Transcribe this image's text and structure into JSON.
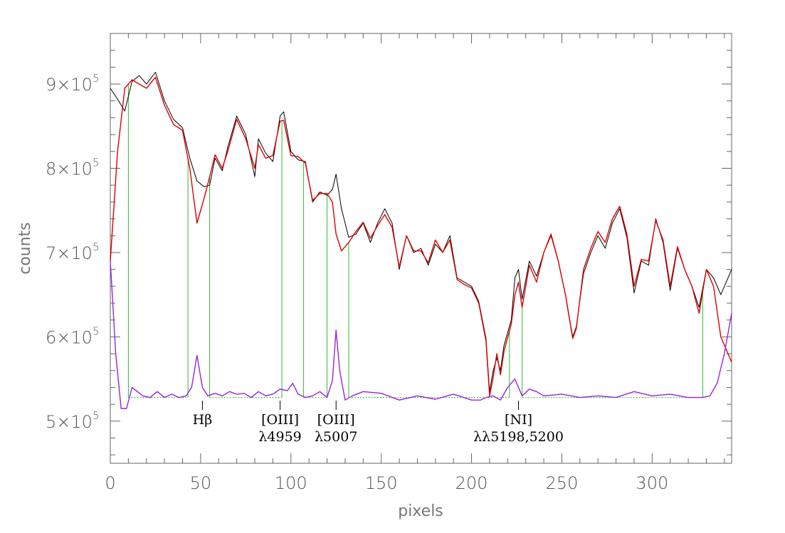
{
  "chart_data": {
    "type": "line",
    "xlabel": "pixels",
    "ylabel": "counts",
    "xlim": [
      0,
      344
    ],
    "ylim": [
      450000,
      960000
    ],
    "x_ticks": [
      0,
      50,
      100,
      150,
      200,
      250,
      300
    ],
    "x_tick_labels": [
      "0",
      "50",
      "100",
      "150",
      "200",
      "250",
      "300"
    ],
    "y_ticks": [
      500000,
      600000,
      700000,
      800000,
      900000
    ],
    "y_tick_mantissa": [
      "5",
      "6",
      "7",
      "8",
      "9"
    ],
    "y_tick_times": "×10",
    "y_tick_exponent": "5",
    "grid": false,
    "series": [
      {
        "color": "#000000",
        "x": [
          0,
          4,
          8,
          12,
          16,
          20,
          25,
          30,
          35,
          40,
          44,
          48,
          52,
          55,
          58,
          62,
          65,
          70,
          75,
          80,
          82,
          86,
          90,
          94,
          96,
          100,
          104,
          108,
          112,
          116,
          120,
          123,
          125,
          128,
          132,
          136,
          140,
          144,
          148,
          152,
          156,
          160,
          164,
          168,
          172,
          176,
          180,
          184,
          188,
          192,
          196,
          200,
          204,
          208,
          210,
          212,
          214,
          216,
          218,
          222,
          224,
          226,
          228,
          232,
          236,
          240,
          244,
          248,
          252,
          256,
          258,
          262,
          266,
          270,
          274,
          278,
          282,
          286,
          290,
          294,
          298,
          302,
          306,
          310,
          314,
          318,
          322,
          326,
          330,
          334,
          338,
          344
        ],
        "y": [
          895000,
          882000,
          868000,
          903000,
          910000,
          900000,
          914000,
          880000,
          858000,
          848000,
          812000,
          785000,
          778000,
          780000,
          812000,
          797000,
          825000,
          862000,
          840000,
          790000,
          835000,
          818000,
          808000,
          862000,
          867000,
          820000,
          810000,
          808000,
          760000,
          772000,
          768000,
          775000,
          793000,
          752000,
          718000,
          722000,
          735000,
          712000,
          735000,
          752000,
          735000,
          680000,
          720000,
          700000,
          705000,
          685000,
          710000,
          700000,
          720000,
          670000,
          665000,
          660000,
          642000,
          598000,
          535000,
          560000,
          575000,
          560000,
          590000,
          620000,
          670000,
          680000,
          645000,
          690000,
          672000,
          700000,
          720000,
          690000,
          650000,
          600000,
          612000,
          675000,
          700000,
          720000,
          705000,
          735000,
          752000,
          718000,
          652000,
          690000,
          685000,
          740000,
          712000,
          655000,
          705000,
          680000,
          660000,
          635000,
          680000,
          670000,
          650000,
          680000
        ]
      },
      {
        "color": "#dd0000",
        "x": [
          0,
          4,
          8,
          12,
          16,
          20,
          25,
          30,
          35,
          40,
          44,
          48,
          52,
          55,
          58,
          62,
          65,
          70,
          75,
          80,
          82,
          86,
          90,
          94,
          96,
          100,
          104,
          108,
          112,
          116,
          120,
          123,
          125,
          128,
          132,
          136,
          140,
          144,
          148,
          152,
          156,
          160,
          164,
          168,
          172,
          176,
          180,
          184,
          188,
          192,
          196,
          200,
          204,
          208,
          210,
          212,
          214,
          216,
          218,
          222,
          224,
          226,
          228,
          232,
          236,
          240,
          244,
          248,
          252,
          256,
          258,
          262,
          266,
          270,
          274,
          278,
          282,
          286,
          290,
          294,
          298,
          302,
          306,
          310,
          314,
          318,
          322,
          326,
          330,
          334,
          338,
          344
        ],
        "y": [
          690000,
          820000,
          895000,
          905000,
          900000,
          895000,
          908000,
          875000,
          852000,
          845000,
          800000,
          735000,
          765000,
          790000,
          816000,
          800000,
          820000,
          858000,
          835000,
          800000,
          828000,
          812000,
          815000,
          856000,
          857000,
          815000,
          814000,
          806000,
          762000,
          770000,
          770000,
          760000,
          722000,
          702000,
          712000,
          725000,
          736000,
          717000,
          732000,
          745000,
          730000,
          683000,
          720000,
          702000,
          702000,
          688000,
          715000,
          700000,
          715000,
          668000,
          662000,
          658000,
          640000,
          595000,
          530000,
          552000,
          580000,
          555000,
          583000,
          615000,
          650000,
          665000,
          635000,
          685000,
          665000,
          700000,
          722000,
          690000,
          650000,
          598000,
          610000,
          680000,
          705000,
          725000,
          712000,
          740000,
          755000,
          722000,
          660000,
          692000,
          690000,
          738000,
          715000,
          660000,
          707000,
          680000,
          660000,
          628000,
          680000,
          660000,
          600000,
          570000
        ]
      },
      {
        "color": "#9922dd",
        "x": [
          0,
          3,
          6,
          9,
          12,
          15,
          18,
          22,
          26,
          30,
          34,
          38,
          42,
          45,
          48,
          51,
          54,
          58,
          62,
          66,
          70,
          74,
          78,
          82,
          86,
          90,
          94,
          98,
          101,
          104,
          108,
          112,
          116,
          120,
          123,
          125,
          127,
          130,
          134,
          140,
          150,
          160,
          170,
          180,
          190,
          200,
          205,
          208,
          212,
          216,
          220,
          224,
          228,
          232,
          236,
          240,
          250,
          260,
          270,
          280,
          290,
          300,
          310,
          320,
          328,
          332,
          336,
          340,
          344
        ],
        "y": [
          690000,
          580000,
          515000,
          515000,
          540000,
          535000,
          530000,
          528000,
          535000,
          528000,
          532000,
          528000,
          530000,
          540000,
          578000,
          540000,
          530000,
          533000,
          530000,
          535000,
          532000,
          533000,
          528000,
          535000,
          530000,
          532000,
          538000,
          536000,
          545000,
          532000,
          528000,
          530000,
          535000,
          528000,
          548000,
          608000,
          560000,
          525000,
          530000,
          535000,
          533000,
          525000,
          530000,
          526000,
          532000,
          525000,
          525000,
          528000,
          530000,
          525000,
          540000,
          550000,
          530000,
          538000,
          535000,
          530000,
          532000,
          528000,
          530000,
          528000,
          535000,
          530000,
          532000,
          528000,
          528000,
          530000,
          545000,
          580000,
          628000
        ]
      }
    ],
    "continuum": {
      "color": "#33bb33",
      "y": 528000,
      "points": [
        10,
        43,
        55,
        95,
        107,
        120,
        132,
        221,
        228,
        328
      ],
      "segments": [
        [
          10,
          43
        ],
        [
          55,
          95
        ],
        [
          107,
          120
        ],
        [
          132,
          221
        ],
        [
          228,
          328
        ]
      ]
    },
    "annotations": [
      {
        "x": 51,
        "lines": [
          "Hβ"
        ],
        "tick": true
      },
      {
        "x": 94,
        "lines": [
          "[OIII]",
          "λ4959"
        ],
        "tick": true
      },
      {
        "x": 125,
        "lines": [
          "[OIII]",
          "λ5007"
        ],
        "tick": true
      },
      {
        "x": 226,
        "lines": [
          "[NI]",
          "λλ5198,5200"
        ],
        "tick": true
      }
    ]
  }
}
